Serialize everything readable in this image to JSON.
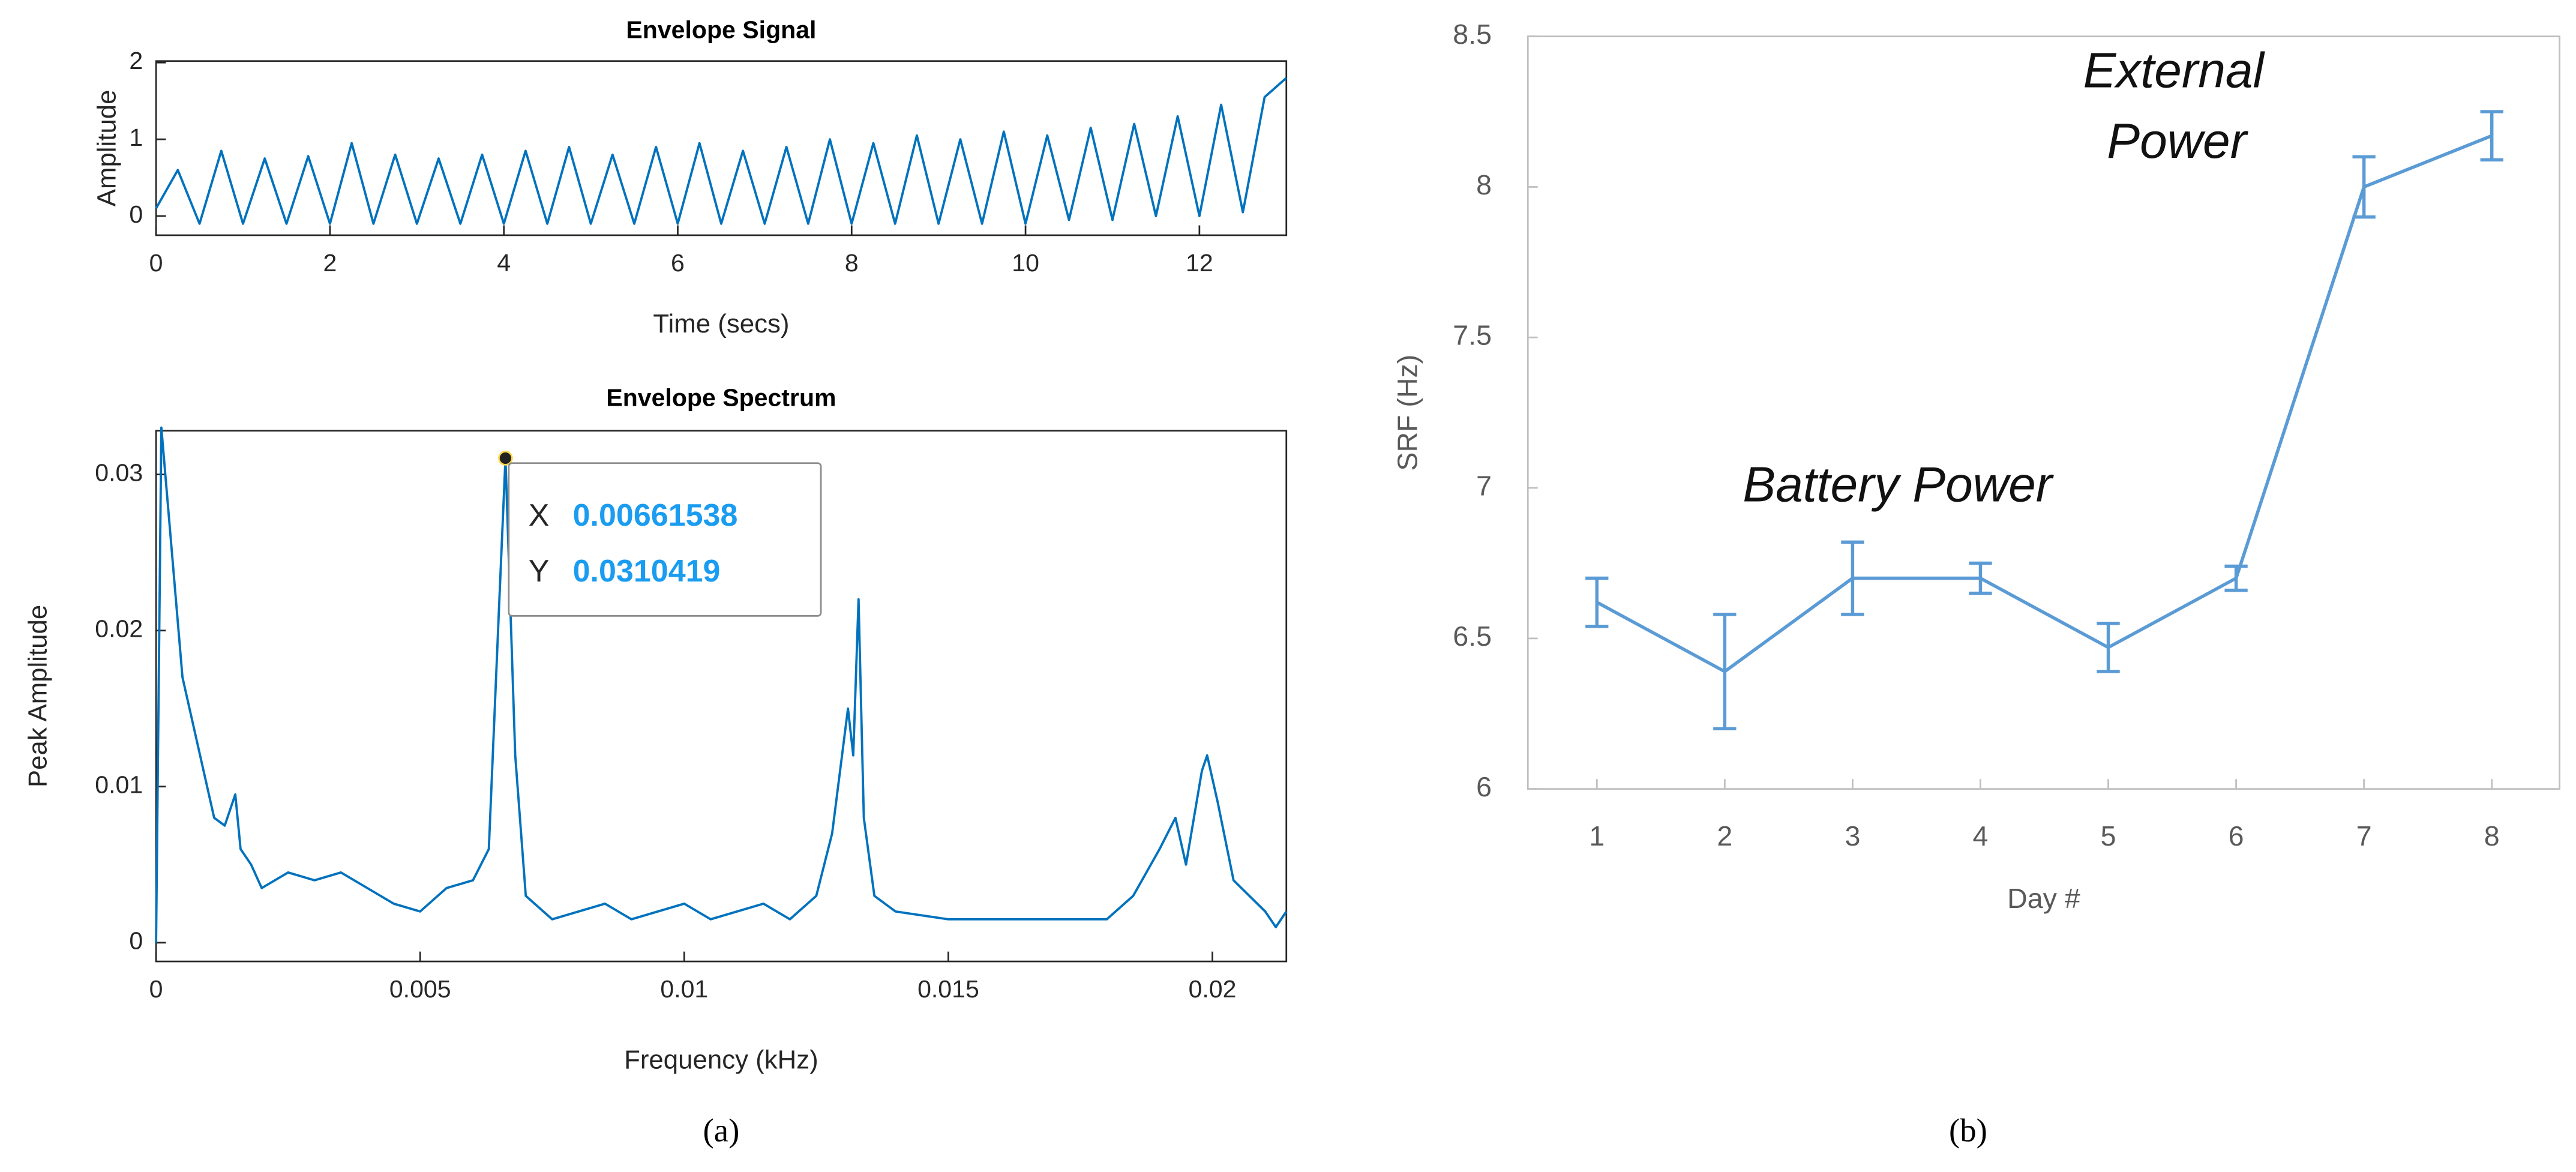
{
  "chart_data": [
    {
      "type": "line",
      "title": "Envelope Signal",
      "x_label": "Time (secs)",
      "y_label": "Amplitude",
      "color": "#0072bd",
      "x": [
        0,
        0.25,
        0.5,
        0.75,
        1,
        1.25,
        1.5,
        1.75,
        2,
        2.25,
        2.5,
        2.75,
        3,
        3.25,
        3.5,
        3.75,
        4,
        4.25,
        4.5,
        4.75,
        5,
        5.25,
        5.5,
        5.75,
        6,
        6.25,
        6.5,
        6.75,
        7,
        7.25,
        7.5,
        7.75,
        8,
        8.25,
        8.5,
        8.75,
        9,
        9.25,
        9.5,
        9.75,
        10,
        10.25,
        10.5,
        10.75,
        11,
        11.25,
        11.5,
        11.75,
        12,
        12.25,
        12.5,
        12.75,
        13
      ],
      "values": [
        0.1,
        0.6,
        -0.1,
        0.85,
        -0.1,
        0.75,
        -0.1,
        0.78,
        -0.1,
        0.95,
        -0.1,
        0.8,
        -0.1,
        0.75,
        -0.1,
        0.8,
        -0.1,
        0.85,
        -0.1,
        0.9,
        -0.1,
        0.8,
        -0.1,
        0.9,
        -0.1,
        0.95,
        -0.1,
        0.85,
        -0.1,
        0.9,
        -0.1,
        1.0,
        -0.1,
        0.95,
        -0.1,
        1.05,
        -0.1,
        1.0,
        -0.1,
        1.1,
        -0.1,
        1.05,
        -0.05,
        1.15,
        -0.05,
        1.2,
        0,
        1.3,
        0,
        1.45,
        0.05,
        1.55,
        1.8
      ],
      "xlim": [
        0,
        13
      ],
      "xticks": [
        0,
        2,
        4,
        6,
        8,
        10,
        12
      ],
      "ylim": [
        -0.25,
        2.02
      ],
      "yticks": [
        0,
        1,
        2
      ]
    },
    {
      "type": "line",
      "title": "Envelope Spectrum",
      "x_label": "Frequency (kHz)",
      "y_label": "Peak Amplitude",
      "color": "#0072bd",
      "x": [
        0,
        0.0001,
        0.0003,
        0.0005,
        0.0007,
        0.0009,
        0.0011,
        0.0013,
        0.0015,
        0.0016,
        0.0018,
        0.002,
        0.0025,
        0.003,
        0.0035,
        0.004,
        0.0045,
        0.005,
        0.0055,
        0.006,
        0.0063,
        0.0065,
        0.00661538,
        0.0068,
        0.007,
        0.0075,
        0.008,
        0.0085,
        0.009,
        0.0095,
        0.01,
        0.0105,
        0.011,
        0.0115,
        0.012,
        0.0125,
        0.0128,
        0.0131,
        0.0132,
        0.0133,
        0.0134,
        0.0136,
        0.014,
        0.015,
        0.016,
        0.017,
        0.018,
        0.0185,
        0.019,
        0.0193,
        0.0195,
        0.0198,
        0.0199,
        0.0201,
        0.0204,
        0.0207,
        0.021,
        0.0212,
        0.0214
      ],
      "values": [
        0,
        0.033,
        0.025,
        0.017,
        0.014,
        0.011,
        0.008,
        0.0075,
        0.0095,
        0.006,
        0.005,
        0.0035,
        0.0045,
        0.004,
        0.0045,
        0.0035,
        0.0025,
        0.002,
        0.0035,
        0.004,
        0.006,
        0.022,
        0.0310419,
        0.012,
        0.003,
        0.0015,
        0.002,
        0.0025,
        0.0015,
        0.002,
        0.0025,
        0.0015,
        0.002,
        0.0025,
        0.0015,
        0.003,
        0.007,
        0.015,
        0.012,
        0.022,
        0.008,
        0.003,
        0.002,
        0.0015,
        0.0015,
        0.0015,
        0.0015,
        0.003,
        0.006,
        0.008,
        0.005,
        0.011,
        0.012,
        0.009,
        0.004,
        0.003,
        0.002,
        0.001,
        0.002
      ],
      "xlim": [
        0,
        0.0214
      ],
      "xticks": [
        0,
        0.005,
        0.01,
        0.015,
        0.02
      ],
      "ylim": [
        -0.0012,
        0.0328
      ],
      "yticks": [
        0,
        0.01,
        0.02,
        0.03
      ],
      "datatip": {
        "x_label": "X",
        "x": 0.00661538,
        "y_label": "Y",
        "y": 0.0310419
      }
    },
    {
      "type": "errorbar",
      "x_label": "Day #",
      "y_label": "SRF (Hz)",
      "color": "#5b9bd5",
      "x": [
        1,
        2,
        3,
        4,
        5,
        6,
        7,
        8
      ],
      "values": [
        6.62,
        6.39,
        6.7,
        6.7,
        6.47,
        6.7,
        8.0,
        8.17
      ],
      "errors": [
        0.08,
        0.19,
        0.12,
        0.05,
        0.08,
        0.04,
        0.1,
        0.08
      ],
      "xlim": [
        0.46,
        8.53
      ],
      "xticks": [
        1,
        2,
        3,
        4,
        5,
        6,
        7,
        8
      ],
      "ylim": [
        6,
        8.5
      ],
      "yticks": [
        6,
        6.5,
        7,
        7.5,
        8,
        8.5
      ],
      "annotations": {
        "battery": "Battery Power",
        "external": [
          "External",
          "Power"
        ]
      }
    }
  ],
  "captions": [
    "(a)",
    "(b)"
  ]
}
